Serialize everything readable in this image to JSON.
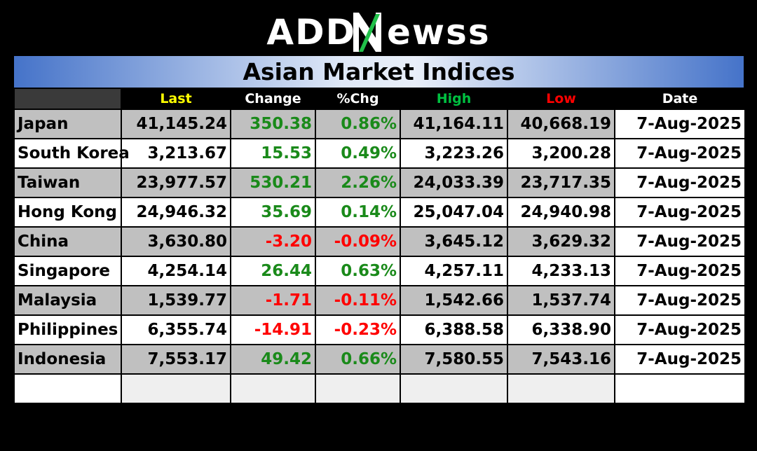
{
  "logo": {
    "part1": "ADD",
    "part2": "ewss"
  },
  "title": "Asian Market Indices",
  "columns": [
    "Last",
    "Change",
    "%Chg",
    "High",
    "Low",
    "Date"
  ],
  "colors": {
    "last": "#ffff00",
    "high": "#00c040",
    "low": "#ff0000",
    "positive": "#1a8a1a",
    "negative": "#ff0000"
  },
  "rows": [
    {
      "name": "Japan",
      "last": "41,145.24",
      "change": "350.38",
      "pct": "0.86%",
      "high": "41,164.11",
      "low": "40,668.19",
      "date": "7-Aug-2025",
      "dir": "pos"
    },
    {
      "name": "South Korea",
      "last": "3,213.67",
      "change": "15.53",
      "pct": "0.49%",
      "high": "3,223.26",
      "low": "3,200.28",
      "date": "7-Aug-2025",
      "dir": "pos"
    },
    {
      "name": "Taiwan",
      "last": "23,977.57",
      "change": "530.21",
      "pct": "2.26%",
      "high": "24,033.39",
      "low": "23,717.35",
      "date": "7-Aug-2025",
      "dir": "pos"
    },
    {
      "name": "Hong Kong",
      "last": "24,946.32",
      "change": "35.69",
      "pct": "0.14%",
      "high": "25,047.04",
      "low": "24,940.98",
      "date": "7-Aug-2025",
      "dir": "pos"
    },
    {
      "name": "China",
      "last": "3,630.80",
      "change": "-3.20",
      "pct": "-0.09%",
      "high": "3,645.12",
      "low": "3,629.32",
      "date": "7-Aug-2025",
      "dir": "neg"
    },
    {
      "name": "Singapore",
      "last": "4,254.14",
      "change": "26.44",
      "pct": "0.63%",
      "high": "4,257.11",
      "low": "4,233.13",
      "date": "7-Aug-2025",
      "dir": "pos"
    },
    {
      "name": "Malaysia",
      "last": "1,539.77",
      "change": "-1.71",
      "pct": "-0.11%",
      "high": "1,542.66",
      "low": "1,537.74",
      "date": "7-Aug-2025",
      "dir": "neg"
    },
    {
      "name": "Philippines",
      "last": "6,355.74",
      "change": "-14.91",
      "pct": "-0.23%",
      "high": "6,388.58",
      "low": "6,338.90",
      "date": "7-Aug-2025",
      "dir": "neg"
    },
    {
      "name": "Indonesia",
      "last": "7,553.17",
      "change": "49.42",
      "pct": "0.66%",
      "high": "7,580.55",
      "low": "7,543.16",
      "date": "7-Aug-2025",
      "dir": "pos"
    }
  ]
}
